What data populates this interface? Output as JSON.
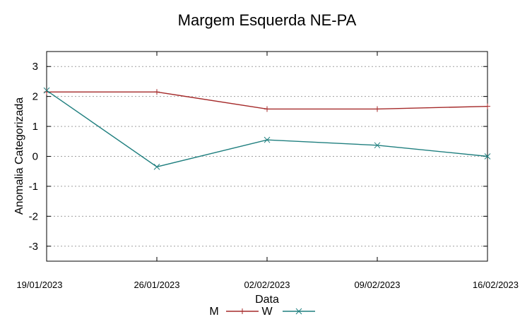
{
  "chart_data": {
    "type": "line",
    "title": "Margem Esquerda NE-PA",
    "xlabel": "Data",
    "ylabel": "Anomalia Categorizada",
    "categories": [
      "19/01/2023",
      "26/01/2023",
      "02/02/2023",
      "09/02/2023",
      "16/02/2023"
    ],
    "ylim": [
      -3.5,
      3.5
    ],
    "yticks": [
      3,
      2,
      1,
      0,
      -1,
      -2,
      -3
    ],
    "ytick_labels": [
      "3",
      "2",
      "1",
      "0",
      "-1",
      "-2",
      "-3"
    ],
    "grid": true,
    "legend_position": "bottom",
    "series": [
      {
        "name": "M",
        "color": "#a52a2a",
        "marker": "plus",
        "values": [
          2.15,
          2.15,
          1.58,
          1.58,
          1.67
        ]
      },
      {
        "name": "W",
        "color": "#1f7f7f",
        "marker": "cross",
        "values": [
          2.2,
          -0.35,
          0.55,
          0.37,
          0.0
        ]
      }
    ]
  }
}
